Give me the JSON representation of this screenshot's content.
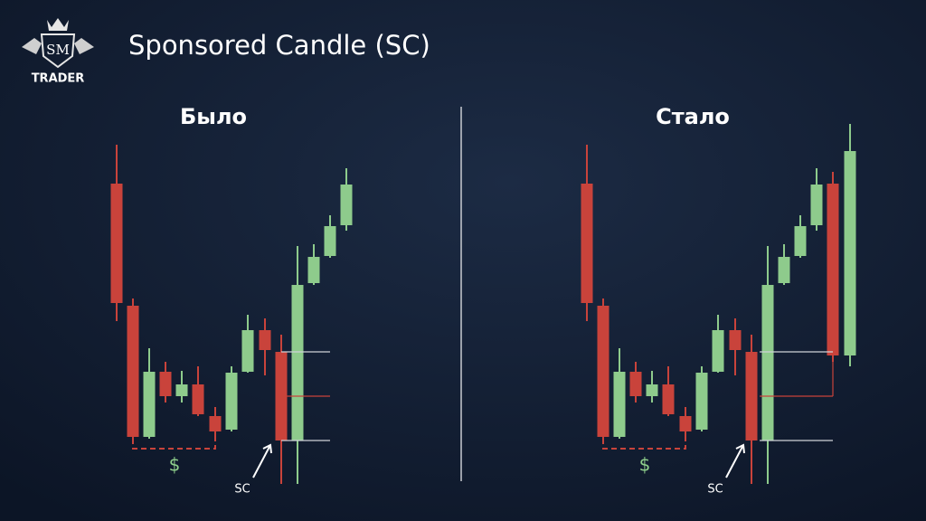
{
  "logo": {
    "initials": "SM",
    "name": "TRADER"
  },
  "title": "Sponsored Candle (SC)",
  "panels": [
    {
      "heading": "Было",
      "dollar": "$",
      "sc_label": "SC"
    },
    {
      "heading": "Стало",
      "dollar": "$",
      "sc_label": "SC"
    }
  ]
}
